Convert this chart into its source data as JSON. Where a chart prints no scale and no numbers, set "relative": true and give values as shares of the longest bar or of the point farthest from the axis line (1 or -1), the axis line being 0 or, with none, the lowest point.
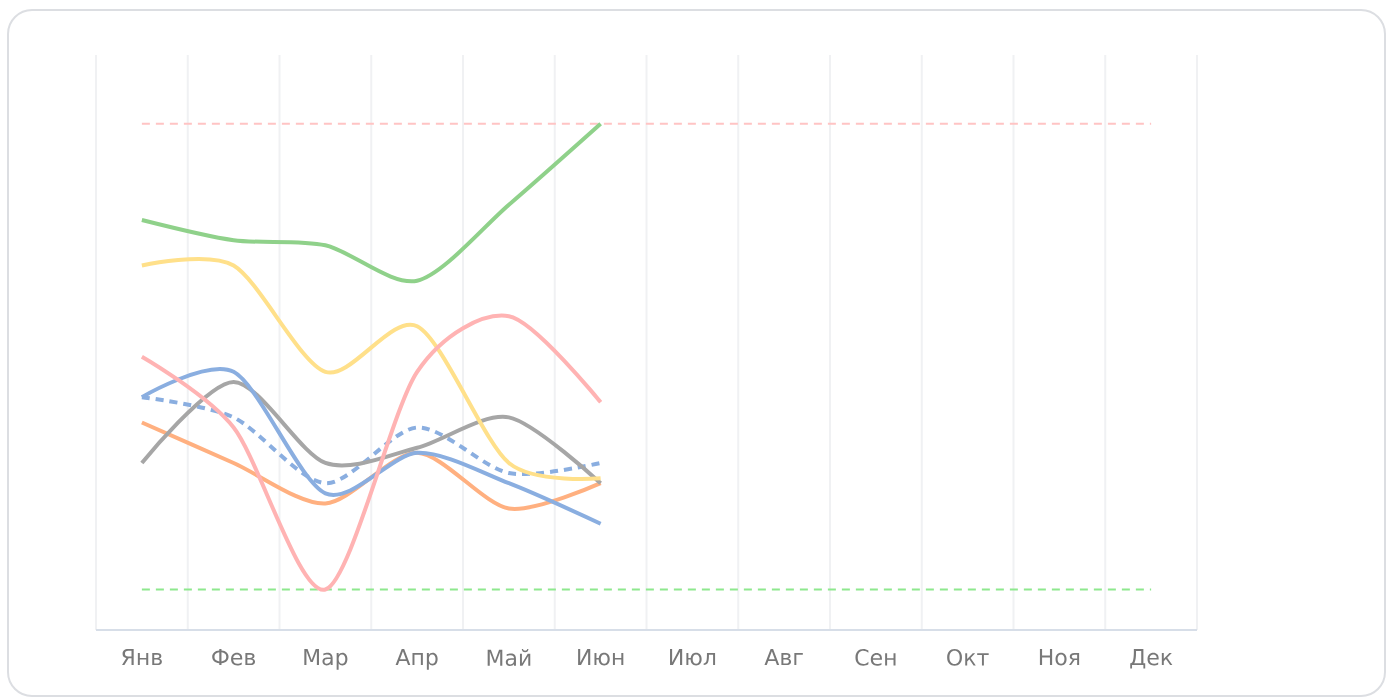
{
  "chart_data": {
    "type": "line",
    "relative": true,
    "grid": "x",
    "tick_labels": "x",
    "line_style": "solid",
    "categories": [
      "Янв",
      "Фев",
      "Мар",
      "Апр",
      "Май",
      "Июн",
      "Июл",
      "Авг",
      "Сен",
      "Окт",
      "Ноя",
      "Дек"
    ],
    "series": [
      {
        "color": "#8aaee0",
        "line_style": "dashed",
        "values": [
          0.46,
          0.42,
          0.29,
          0.4,
          0.31,
          0.33,
          null,
          null,
          null,
          null,
          null,
          null
        ]
      },
      {
        "color": "#ffb080",
        "values": [
          0.41,
          0.33,
          0.25,
          0.35,
          0.24,
          0.29,
          null,
          null,
          null,
          null,
          null,
          null
        ]
      },
      {
        "color": "#a6a6a6",
        "values": [
          0.33,
          0.49,
          0.33,
          0.36,
          0.42,
          0.29,
          null,
          null,
          null,
          null,
          null,
          null
        ]
      },
      {
        "color": "#8fd18a",
        "values": [
          0.81,
          0.77,
          0.76,
          0.69,
          0.84,
          1.0,
          null,
          null,
          null,
          null,
          null,
          null
        ]
      },
      {
        "color": "#8aaee0",
        "values": [
          0.46,
          0.51,
          0.27,
          0.35,
          0.29,
          0.21,
          null,
          null,
          null,
          null,
          null,
          null
        ]
      },
      {
        "color": "#ffe08a",
        "values": [
          0.72,
          0.72,
          0.51,
          0.6,
          0.33,
          0.3,
          null,
          null,
          null,
          null,
          null,
          null
        ]
      },
      {
        "color": "#ffb3b3",
        "values": [
          0.54,
          0.4,
          0.08,
          0.51,
          0.62,
          0.45,
          null,
          null,
          null,
          null,
          null,
          null
        ]
      }
    ],
    "ref_lines": [
      {
        "axis": "y",
        "value": 1.0,
        "color": "#ffc4c4",
        "line_style": "dashed"
      },
      {
        "axis": "y",
        "value": 0.08,
        "color": "#8ee88e",
        "line_style": "dashed"
      }
    ]
  }
}
